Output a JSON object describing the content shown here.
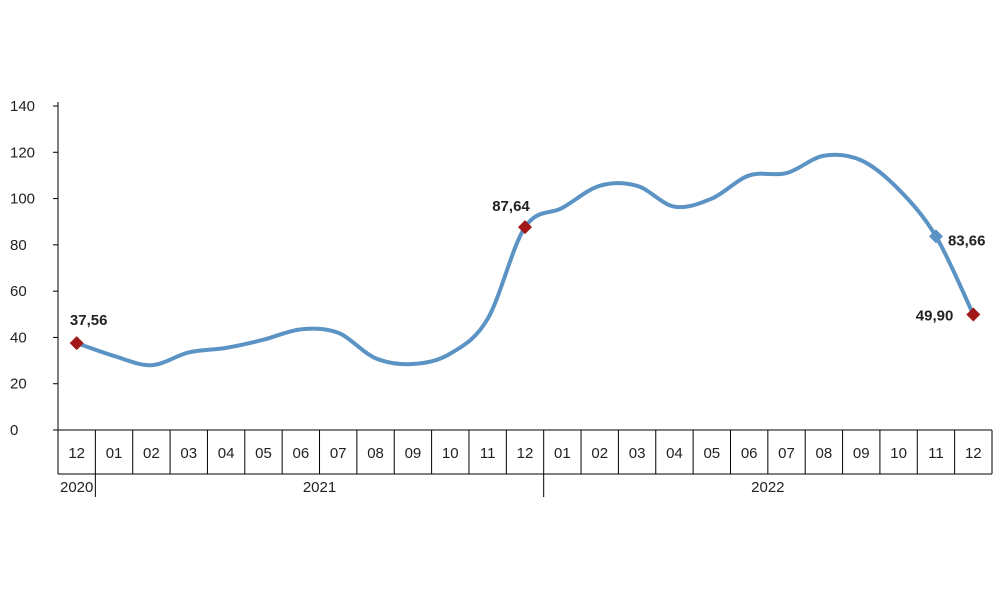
{
  "chart_data": {
    "type": "line",
    "title": "",
    "xlabel": "",
    "ylabel": "",
    "ylim": [
      0,
      140
    ],
    "yticks": [
      0,
      20,
      40,
      60,
      80,
      100,
      120,
      140
    ],
    "grid": false,
    "legend": "none",
    "categories": [
      "12",
      "01",
      "02",
      "03",
      "04",
      "05",
      "06",
      "07",
      "08",
      "09",
      "10",
      "11",
      "12",
      "01",
      "02",
      "03",
      "04",
      "05",
      "06",
      "07",
      "08",
      "09",
      "10",
      "11",
      "12"
    ],
    "year_groups": [
      {
        "label": "2020",
        "start": 0,
        "end": 0
      },
      {
        "label": "2021",
        "start": 1,
        "end": 12
      },
      {
        "label": "2022",
        "start": 13,
        "end": 24
      }
    ],
    "series": [
      {
        "color": "#5b93c4",
        "values": [
          37.56,
          32,
          28,
          33.5,
          35.5,
          39,
          43.5,
          42,
          31,
          28.5,
          33,
          48,
          87.64,
          96,
          105.5,
          105.5,
          96.5,
          100,
          110,
          111,
          118.5,
          116.5,
          104,
          83.66,
          49.9
        ]
      }
    ],
    "markers": [
      {
        "index": 0,
        "label": "37,56",
        "color": "#a01818",
        "shape": "diamond"
      },
      {
        "index": 12,
        "label": "87,64",
        "color": "#a01818",
        "shape": "diamond"
      },
      {
        "index": 23,
        "label": "83,66",
        "color": "#5b93c4",
        "shape": "diamond"
      },
      {
        "index": 24,
        "label": "49,90",
        "color": "#a01818",
        "shape": "diamond"
      }
    ]
  }
}
